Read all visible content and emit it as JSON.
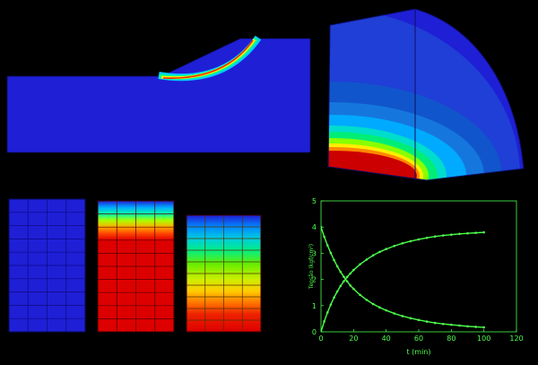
{
  "palette": {
    "background": "#000000",
    "low": "#1f1fd6",
    "high": "#cc0000",
    "chart_color": "#4cff4c"
  },
  "chart_data": {
    "type": "scatter",
    "xlabel": "t (min)",
    "ylabel": "Tensão (kgf/cm²)",
    "xlim": [
      0,
      120
    ],
    "ylim": [
      0,
      5
    ],
    "xticks": [
      0,
      20,
      40,
      60,
      80,
      100,
      120
    ],
    "yticks": [
      0,
      1,
      2,
      3,
      4,
      5
    ],
    "grid": false,
    "series": [
      {
        "x": [
          0,
          2,
          4,
          6,
          8,
          10,
          12,
          14,
          16,
          18,
          20,
          24,
          28,
          32,
          36,
          40,
          45,
          50,
          55,
          60,
          65,
          70,
          75,
          80,
          85,
          90,
          95,
          100
        ],
        "y": [
          0.0,
          0.4,
          0.74,
          1.04,
          1.31,
          1.54,
          1.75,
          1.93,
          2.09,
          2.23,
          2.36,
          2.58,
          2.76,
          2.92,
          3.05,
          3.16,
          3.28,
          3.38,
          3.46,
          3.53,
          3.59,
          3.64,
          3.68,
          3.71,
          3.74,
          3.76,
          3.78,
          3.8
        ]
      },
      {
        "x": [
          0,
          2,
          4,
          6,
          8,
          10,
          12,
          14,
          16,
          18,
          20,
          24,
          28,
          32,
          36,
          40,
          45,
          50,
          55,
          60,
          65,
          70,
          75,
          80,
          85,
          90,
          95,
          100
        ],
        "y": [
          4.0,
          3.63,
          3.3,
          3.01,
          2.74,
          2.5,
          2.29,
          2.1,
          1.93,
          1.77,
          1.64,
          1.41,
          1.22,
          1.06,
          0.93,
          0.82,
          0.7,
          0.6,
          0.52,
          0.45,
          0.39,
          0.34,
          0.3,
          0.27,
          0.24,
          0.21,
          0.19,
          0.17
        ]
      }
    ]
  }
}
